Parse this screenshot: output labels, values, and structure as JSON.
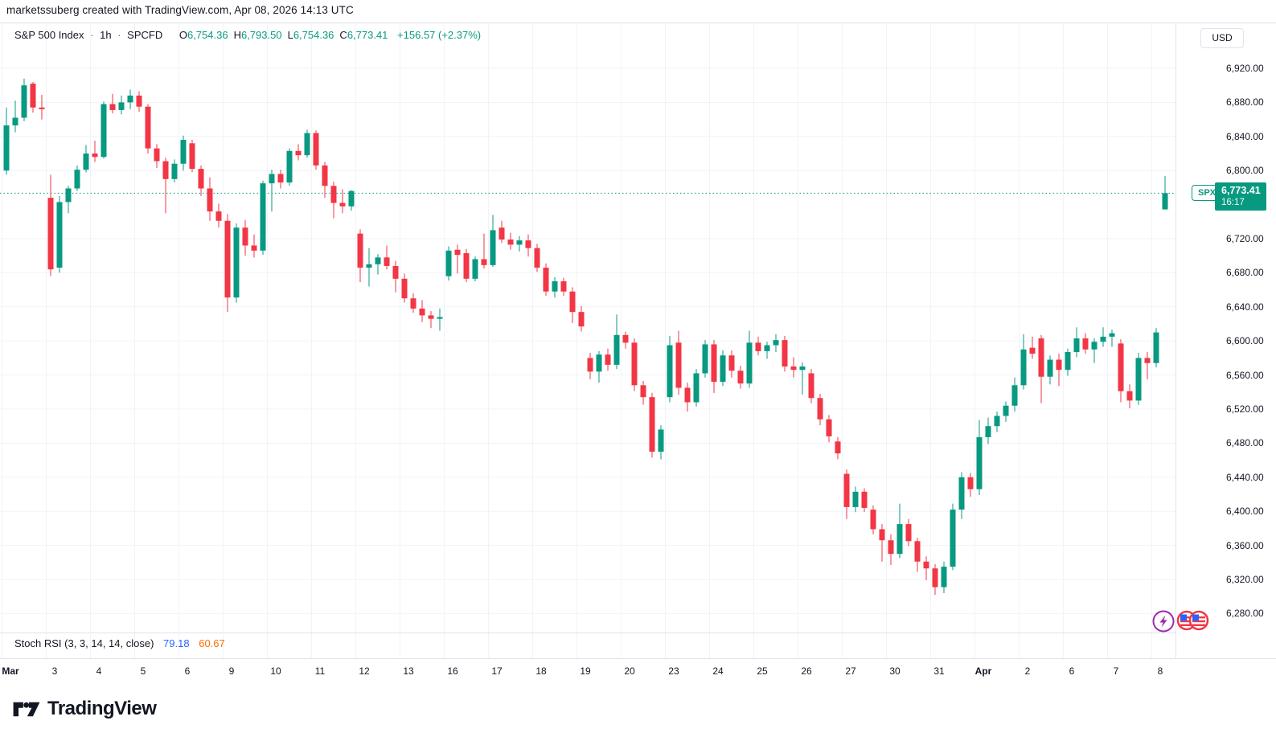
{
  "attribution": "marketssuberg created with TradingView.com, Apr 08, 2026 14:13 UTC",
  "header": {
    "symbol_title": "S&P 500 Index",
    "interval": "1h",
    "exchange": "SPCFD",
    "sep": "·",
    "ohlc": [
      {
        "label": "O",
        "value": "6,754.36"
      },
      {
        "label": "H",
        "value": "6,793.50"
      },
      {
        "label": "L",
        "value": "6,754.36"
      },
      {
        "label": "C",
        "value": "6,773.41"
      }
    ],
    "change": "+156.57 (+2.37%)"
  },
  "price_axis": {
    "currency_button": "USD",
    "labels": [
      {
        "price": 6920,
        "text": "6,920.00"
      },
      {
        "price": 6880,
        "text": "6,880.00"
      },
      {
        "price": 6840,
        "text": "6,840.00"
      },
      {
        "price": 6800,
        "text": "6,800.00"
      },
      {
        "price": 6720,
        "text": "6,720.00"
      },
      {
        "price": 6680,
        "text": "6,680.00"
      },
      {
        "price": 6640,
        "text": "6,640.00"
      },
      {
        "price": 6600,
        "text": "6,600.00"
      },
      {
        "price": 6560,
        "text": "6,560.00"
      },
      {
        "price": 6520,
        "text": "6,520.00"
      },
      {
        "price": 6480,
        "text": "6,480.00"
      },
      {
        "price": 6440,
        "text": "6,440.00"
      },
      {
        "price": 6400,
        "text": "6,400.00"
      },
      {
        "price": 6360,
        "text": "6,360.00"
      },
      {
        "price": 6320,
        "text": "6,320.00"
      },
      {
        "price": 6280,
        "text": "6,280.00"
      }
    ],
    "tag": {
      "symbol": "SPX",
      "price": "6,773.41",
      "time": "16:17",
      "price_value": 6773.41
    }
  },
  "indicator": {
    "name": "Stoch RSI (3, 3, 14, 14, close)",
    "k_value": "79.18",
    "d_value": "60.67"
  },
  "logo_text": "TradingView",
  "colors": {
    "up": "#089981",
    "down": "#F23645",
    "grid": "#F0F3FA",
    "frame": "#E0E3EB",
    "text": "#131722",
    "stoch_k": "#2962FF",
    "stoch_d": "#FF6D00",
    "lightning": "#9C27B0",
    "flag_red": "#F23645",
    "flag_blue": "#2962FF"
  },
  "chart_data": {
    "type": "candlestick",
    "title": "S&P 500 Index · 1h · SPCFD",
    "ylabel": "USD",
    "ylim": [
      6280,
      6920
    ],
    "grid": true,
    "current_price": 6773.41,
    "current_price_line": "dotted",
    "days": [
      {
        "label": "Mar",
        "bold": true,
        "candles": [
          [
            6800,
            6874,
            6795,
            6853
          ],
          [
            6853,
            6882,
            6845,
            6862
          ],
          [
            6862,
            6908,
            6858,
            6900
          ],
          [
            6902,
            6904,
            6868,
            6874
          ],
          [
            6874,
            6889,
            6860,
            6872
          ]
        ]
      },
      {
        "label": "3",
        "bold": false,
        "candles": [
          [
            6768,
            6795,
            6676,
            6684
          ],
          [
            6686,
            6770,
            6680,
            6763
          ],
          [
            6763,
            6782,
            6750,
            6779
          ],
          [
            6779,
            6806,
            6776,
            6801
          ],
          [
            6801,
            6830,
            6798,
            6820
          ]
        ]
      },
      {
        "label": "4",
        "bold": false,
        "candles": [
          [
            6820,
            6835,
            6810,
            6816
          ],
          [
            6816,
            6881,
            6814,
            6878
          ],
          [
            6878,
            6890,
            6867,
            6871
          ],
          [
            6871,
            6888,
            6866,
            6880
          ],
          [
            6880,
            6895,
            6872,
            6888
          ]
        ]
      },
      {
        "label": "5",
        "bold": false,
        "candles": [
          [
            6888,
            6893,
            6869,
            6875
          ],
          [
            6875,
            6878,
            6820,
            6826
          ],
          [
            6826,
            6831,
            6803,
            6811
          ],
          [
            6811,
            6815,
            6750,
            6790
          ],
          [
            6790,
            6813,
            6786,
            6808
          ]
        ]
      },
      {
        "label": "6",
        "bold": false,
        "candles": [
          [
            6808,
            6841,
            6800,
            6836
          ],
          [
            6832,
            6836,
            6798,
            6802
          ],
          [
            6802,
            6806,
            6770,
            6779
          ],
          [
            6779,
            6792,
            6741,
            6752
          ],
          [
            6752,
            6761,
            6733,
            6741
          ]
        ]
      },
      {
        "label": "9",
        "bold": false,
        "candles": [
          [
            6741,
            6749,
            6634,
            6651
          ],
          [
            6651,
            6738,
            6645,
            6733
          ],
          [
            6733,
            6742,
            6700,
            6712
          ],
          [
            6712,
            6725,
            6698,
            6706
          ],
          [
            6706,
            6788,
            6701,
            6785
          ]
        ]
      },
      {
        "label": "10",
        "bold": false,
        "candles": [
          [
            6785,
            6801,
            6752,
            6796
          ],
          [
            6796,
            6801,
            6779,
            6786
          ],
          [
            6786,
            6826,
            6782,
            6823
          ],
          [
            6823,
            6831,
            6812,
            6818
          ],
          [
            6818,
            6848,
            6815,
            6844
          ]
        ]
      },
      {
        "label": "11",
        "bold": false,
        "candles": [
          [
            6844,
            6847,
            6801,
            6806
          ],
          [
            6806,
            6810,
            6768,
            6782
          ],
          [
            6782,
            6787,
            6744,
            6762
          ],
          [
            6762,
            6778,
            6750,
            6758
          ],
          [
            6758,
            6777,
            6753,
            6776
          ]
        ]
      },
      {
        "label": "12",
        "bold": false,
        "candles": [
          [
            6726,
            6731,
            6669,
            6686
          ],
          [
            6686,
            6709,
            6664,
            6690
          ],
          [
            6690,
            6702,
            6678,
            6698
          ],
          [
            6698,
            6712,
            6684,
            6688
          ],
          [
            6688,
            6694,
            6657,
            6673
          ]
        ]
      },
      {
        "label": "13",
        "bold": false,
        "candles": [
          [
            6673,
            6679,
            6645,
            6650
          ],
          [
            6650,
            6656,
            6633,
            6638
          ],
          [
            6638,
            6648,
            6622,
            6630
          ],
          [
            6630,
            6635,
            6615,
            6626
          ],
          [
            6626,
            6638,
            6612,
            6628
          ]
        ]
      },
      {
        "label": "16",
        "bold": false,
        "candles": [
          [
            6676,
            6711,
            6671,
            6706
          ],
          [
            6707,
            6713,
            6679,
            6701
          ],
          [
            6703,
            6708,
            6669,
            6673
          ],
          [
            6673,
            6699,
            6670,
            6696
          ],
          [
            6696,
            6726,
            6685,
            6689
          ]
        ]
      },
      {
        "label": "17",
        "bold": false,
        "candles": [
          [
            6689,
            6748,
            6687,
            6730
          ],
          [
            6733,
            6741,
            6715,
            6719
          ],
          [
            6719,
            6727,
            6707,
            6713
          ],
          [
            6713,
            6723,
            6705,
            6718
          ],
          [
            6718,
            6725,
            6699,
            6709
          ]
        ]
      },
      {
        "label": "18",
        "bold": false,
        "candles": [
          [
            6709,
            6714,
            6681,
            6686
          ],
          [
            6686,
            6691,
            6653,
            6658
          ],
          [
            6658,
            6675,
            6651,
            6670
          ],
          [
            6670,
            6674,
            6653,
            6658
          ],
          [
            6658,
            6663,
            6621,
            6634
          ]
        ]
      },
      {
        "label": "19",
        "bold": false,
        "candles": [
          [
            6634,
            6641,
            6611,
            6617
          ],
          [
            6580,
            6586,
            6555,
            6564
          ],
          [
            6564,
            6588,
            6551,
            6584
          ],
          [
            6584,
            6591,
            6565,
            6572
          ],
          [
            6572,
            6631,
            6567,
            6607
          ]
        ]
      },
      {
        "label": "20",
        "bold": false,
        "candles": [
          [
            6607,
            6611,
            6591,
            6598
          ],
          [
            6598,
            6603,
            6541,
            6548
          ],
          [
            6548,
            6553,
            6525,
            6534
          ],
          [
            6534,
            6539,
            6463,
            6470
          ],
          [
            6470,
            6501,
            6461,
            6496
          ]
        ]
      },
      {
        "label": "23",
        "bold": false,
        "candles": [
          [
            6534,
            6606,
            6528,
            6595
          ],
          [
            6598,
            6612,
            6537,
            6545
          ],
          [
            6545,
            6551,
            6517,
            6528
          ],
          [
            6528,
            6567,
            6523,
            6562
          ],
          [
            6562,
            6601,
            6557,
            6596
          ]
        ]
      },
      {
        "label": "24",
        "bold": false,
        "candles": [
          [
            6596,
            6601,
            6539,
            6552
          ],
          [
            6552,
            6589,
            6547,
            6583
          ],
          [
            6583,
            6589,
            6557,
            6565
          ],
          [
            6565,
            6571,
            6544,
            6550
          ],
          [
            6550,
            6612,
            6545,
            6598
          ]
        ]
      },
      {
        "label": "25",
        "bold": false,
        "candles": [
          [
            6598,
            6605,
            6583,
            6588
          ],
          [
            6588,
            6599,
            6579,
            6595
          ],
          [
            6595,
            6608,
            6587,
            6601
          ],
          [
            6601,
            6606,
            6564,
            6570
          ],
          [
            6570,
            6581,
            6557,
            6566
          ]
        ]
      },
      {
        "label": "26",
        "bold": false,
        "candles": [
          [
            6566,
            6575,
            6537,
            6570
          ],
          [
            6562,
            6567,
            6527,
            6533
          ],
          [
            6533,
            6538,
            6501,
            6508
          ],
          [
            6508,
            6513,
            6481,
            6488
          ],
          [
            6482,
            6487,
            6461,
            6468
          ]
        ]
      },
      {
        "label": "27",
        "bold": false,
        "candles": [
          [
            6444,
            6449,
            6391,
            6405
          ],
          [
            6405,
            6429,
            6399,
            6423
          ],
          [
            6423,
            6427,
            6399,
            6404
          ],
          [
            6402,
            6407,
            6373,
            6379
          ],
          [
            6379,
            6385,
            6341,
            6366
          ]
        ]
      },
      {
        "label": "30",
        "bold": false,
        "candles": [
          [
            6366,
            6373,
            6337,
            6350
          ],
          [
            6350,
            6409,
            6345,
            6385
          ],
          [
            6385,
            6391,
            6359,
            6365
          ],
          [
            6365,
            6369,
            6329,
            6341
          ],
          [
            6341,
            6347,
            6319,
            6333
          ]
        ]
      },
      {
        "label": "31",
        "bold": false,
        "candles": [
          [
            6333,
            6338,
            6302,
            6311
          ],
          [
            6311,
            6341,
            6304,
            6335
          ],
          [
            6335,
            6409,
            6331,
            6402
          ],
          [
            6402,
            6446,
            6391,
            6440
          ],
          [
            6440,
            6445,
            6417,
            6426
          ]
        ]
      },
      {
        "label": "Apr",
        "bold": true,
        "candles": [
          [
            6426,
            6507,
            6419,
            6487
          ],
          [
            6487,
            6510,
            6479,
            6500
          ],
          [
            6500,
            6517,
            6493,
            6512
          ],
          [
            6512,
            6529,
            6505,
            6524
          ],
          [
            6524,
            6557,
            6517,
            6548
          ]
        ]
      },
      {
        "label": "2",
        "bold": false,
        "candles": [
          [
            6548,
            6608,
            6543,
            6590
          ],
          [
            6592,
            6605,
            6579,
            6585
          ],
          [
            6603,
            6607,
            6527,
            6558
          ],
          [
            6558,
            6583,
            6549,
            6578
          ],
          [
            6578,
            6585,
            6547,
            6566
          ]
        ]
      },
      {
        "label": "6",
        "bold": false,
        "candles": [
          [
            6566,
            6591,
            6559,
            6587
          ],
          [
            6587,
            6616,
            6581,
            6603
          ],
          [
            6603,
            6609,
            6585,
            6590
          ],
          [
            6590,
            6603,
            6574,
            6599
          ],
          [
            6599,
            6616,
            6593,
            6605
          ]
        ]
      },
      {
        "label": "7",
        "bold": false,
        "candles": [
          [
            6605,
            6613,
            6593,
            6609
          ],
          [
            6597,
            6602,
            6528,
            6541
          ],
          [
            6541,
            6549,
            6521,
            6530
          ],
          [
            6530,
            6586,
            6525,
            6580
          ],
          [
            6580,
            6587,
            6555,
            6574
          ]
        ]
      },
      {
        "label": "8",
        "bold": false,
        "candles": [
          [
            6574,
            6615,
            6569,
            6610
          ],
          [
            6754.36,
            6793.5,
            6754.36,
            6773.41
          ]
        ]
      }
    ]
  }
}
